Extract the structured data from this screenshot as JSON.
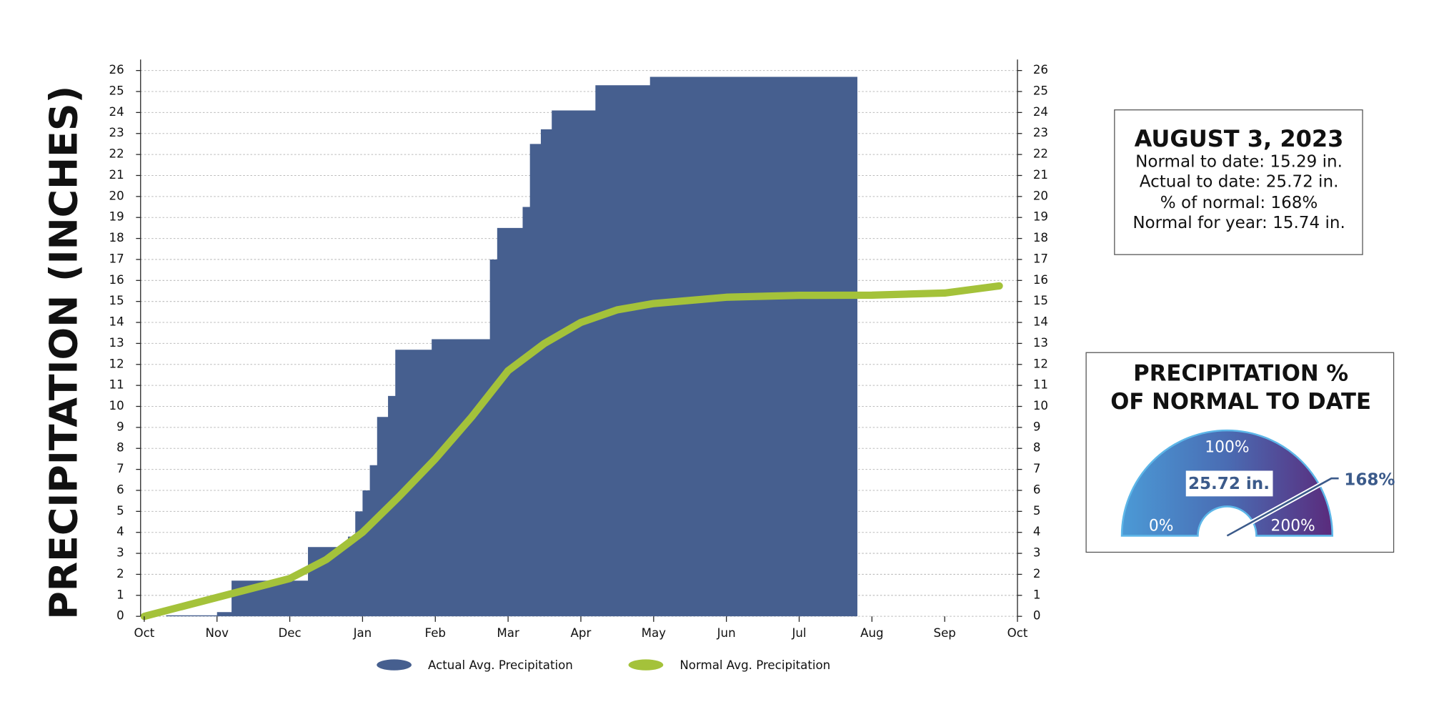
{
  "chart_data": [
    {
      "type": "area",
      "y_label": "PRECIPITATION (INCHES)",
      "xlim": [
        0,
        12
      ],
      "xticks": [
        {
          "value": 0,
          "label": "Oct"
        },
        {
          "value": 1,
          "label": "Nov"
        },
        {
          "value": 2,
          "label": "Dec"
        },
        {
          "value": 3,
          "label": "Jan"
        },
        {
          "value": 4,
          "label": "Feb"
        },
        {
          "value": 5,
          "label": "Mar"
        },
        {
          "value": 6,
          "label": "Apr"
        },
        {
          "value": 7,
          "label": "May"
        },
        {
          "value": 8,
          "label": "Jun"
        },
        {
          "value": 9,
          "label": "Jul"
        },
        {
          "value": 10,
          "label": "Aug"
        },
        {
          "value": 11,
          "label": "Sep"
        },
        {
          "value": 12,
          "label": "Oct"
        }
      ],
      "ylim": [
        0,
        26
      ],
      "yticks": [
        0,
        1,
        2,
        3,
        4,
        5,
        6,
        7,
        8,
        9,
        10,
        11,
        12,
        13,
        14,
        15,
        16,
        17,
        18,
        19,
        20,
        21,
        22,
        23,
        24,
        25,
        26
      ],
      "grid": true,
      "series": [
        {
          "name": "Actual Avg. Precipitation",
          "color": "#465f8f",
          "style": "step-area",
          "x": [
            0.3,
            1.0,
            1.2,
            2.25,
            2.8,
            2.9,
            3.0,
            3.1,
            3.2,
            3.35,
            3.45,
            3.95,
            4.75,
            4.85,
            5.2,
            5.3,
            5.45,
            5.6,
            6.2,
            6.95,
            9.8
          ],
          "values": [
            0.05,
            0.2,
            1.7,
            3.3,
            3.8,
            5,
            6,
            7.2,
            9.5,
            10.5,
            12.7,
            13.2,
            17,
            18.5,
            19.5,
            22.5,
            23.2,
            24.1,
            25.3,
            25.7,
            25.72
          ]
        },
        {
          "name": "Normal Avg. Precipitation",
          "color": "#a4c23a",
          "style": "line",
          "x": [
            0,
            1,
            2,
            2.5,
            3,
            3.5,
            4,
            4.5,
            5,
            5.5,
            6,
            6.5,
            7,
            8,
            9,
            10,
            11,
            11.75
          ],
          "values": [
            0,
            0.9,
            1.8,
            2.7,
            4,
            5.7,
            7.5,
            9.5,
            11.7,
            13,
            14,
            14.6,
            14.9,
            15.2,
            15.29,
            15.3,
            15.4,
            15.74
          ]
        }
      ]
    },
    {
      "type": "gauge",
      "title": [
        "PRECIPITATION %",
        "OF NORMAL TO DATE"
      ],
      "range": [
        0,
        200
      ],
      "ticks": [
        {
          "value": 0,
          "label": "0%"
        },
        {
          "value": 100,
          "label": "100%"
        },
        {
          "value": 200,
          "label": "200%"
        }
      ],
      "value": 168,
      "value_label": "168%",
      "center_label": "25.72 in."
    }
  ],
  "info_box": {
    "title": "AUGUST 3, 2023",
    "lines": [
      "Normal to date: 15.29 in.",
      "Actual to date: 25.72 in.",
      "% of normal: 168%",
      "Normal for year: 15.74 in."
    ]
  }
}
